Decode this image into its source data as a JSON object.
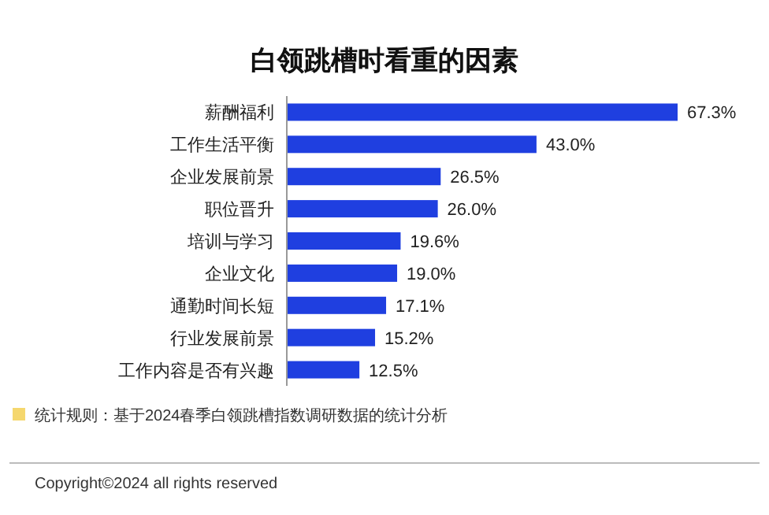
{
  "chart_data": {
    "type": "bar",
    "orientation": "horizontal",
    "title": "白领跳槽时看重的因素",
    "categories": [
      "薪酬福利",
      "工作生活平衡",
      "企业发展前景",
      "职位晋升",
      "培训与学习",
      "企业文化",
      "通勤时间长短",
      "行业发展前景",
      "工作内容是否有兴趣"
    ],
    "values": [
      67.3,
      43.0,
      26.5,
      26.0,
      19.6,
      19.0,
      17.1,
      15.2,
      12.5
    ],
    "value_labels": [
      "67.3%",
      "43.0%",
      "26.5%",
      "26.0%",
      "19.6%",
      "19.0%",
      "17.1%",
      "15.2%",
      "12.5%"
    ],
    "color": "#1f3fe0",
    "annotations": [
      "统计规则：基于2024春季白领跳槽指数调研数据的统计分析",
      "Copyright©2024 all rights reserved"
    ]
  }
}
